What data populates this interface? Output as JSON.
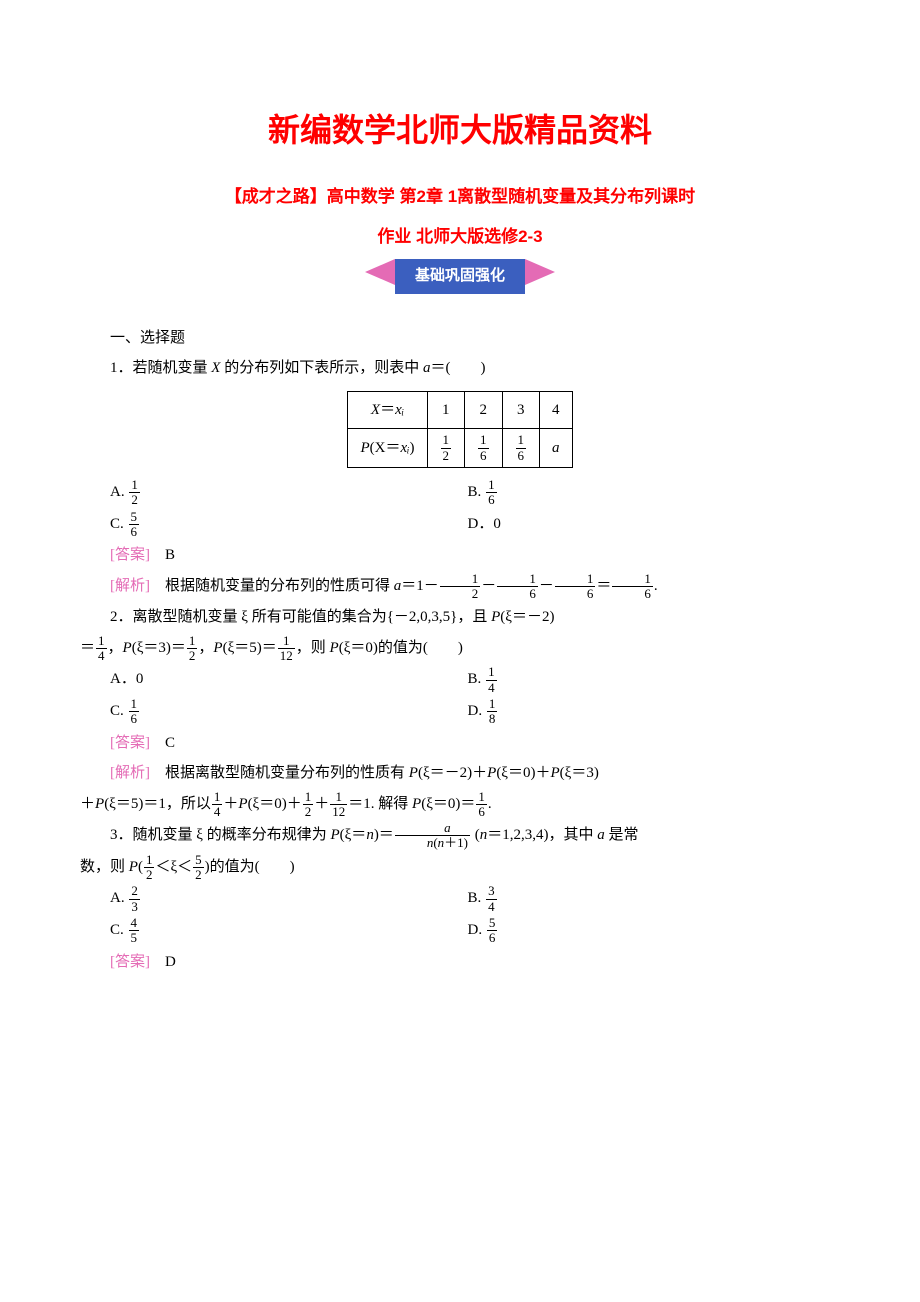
{
  "titles": {
    "main": "新编数学北师大版精品资料",
    "sub1": "【成才之路】高中数学 第2章 1离散型随机变量及其分布列课时",
    "sub2": "作业 北师大版选修2-3",
    "banner": "基础巩固强化"
  },
  "colors": {
    "red_title": "#ff0000",
    "banner_bg": "#3b5fbf",
    "banner_arrow": "#e46bb5",
    "analysis": "#e46bb5",
    "text": "#000000",
    "bg": "#ffffff"
  },
  "typography": {
    "title_main_fontsize": 32,
    "title_sub_fontsize": 17,
    "body_fontsize": 15,
    "frac_fontsize": 13
  },
  "section_heading": "一、选择题",
  "q1": {
    "stem_prefix": "1．若随机变量 ",
    "stem_var": "X",
    "stem_suffix": " 的分布列如下表所示，则表中 ",
    "stem_var2": "a",
    "stem_tail": "＝(　　)",
    "table": {
      "row1_label_pre": "X",
      "row1_label_post": "＝",
      "row1_sub": "xᵢ",
      "row1_vals": [
        "1",
        "2",
        "3",
        "4"
      ],
      "row2_label_pre": "P",
      "row2_label_mid": "(X＝",
      "row2_label_sub": "xᵢ",
      "row2_label_post": ")",
      "row2_fracs": [
        {
          "num": "1",
          "den": "2"
        },
        {
          "num": "1",
          "den": "6"
        },
        {
          "num": "1",
          "den": "6"
        }
      ],
      "row2_last": "a"
    },
    "opts": {
      "A": {
        "num": "1",
        "den": "2"
      },
      "B": {
        "num": "1",
        "den": "6"
      },
      "C": {
        "num": "5",
        "den": "6"
      },
      "D": "0"
    },
    "answer_label": "[答案]",
    "answer": "B",
    "analysis_label": "[解析]",
    "analysis_pre": "根据随机变量的分布列的性质可得 ",
    "analysis_var": "a",
    "analysis_eq": "＝1－",
    "analysis_f1": {
      "num": "1",
      "den": "2"
    },
    "analysis_minus1": "－",
    "analysis_f2": {
      "num": "1",
      "den": "6"
    },
    "analysis_minus2": "－",
    "analysis_f3": {
      "num": "1",
      "den": "6"
    },
    "analysis_eq2": "＝",
    "analysis_f4": {
      "num": "1",
      "den": "6"
    },
    "analysis_end": "."
  },
  "q2": {
    "stem_l1_pre": "2．离散型随机变量 ξ 所有可能值的集合为{－2,0,3,5}，且 ",
    "stem_l1_p": "P",
    "stem_l1_arg": "(ξ＝－2)",
    "stem_l2_pre": "＝",
    "stem_l2_f1": {
      "num": "1",
      "den": "4"
    },
    "stem_l2_t1": "，",
    "stem_l2_p1": "P",
    "stem_l2_a1": "(ξ＝3)＝",
    "stem_l2_f2": {
      "num": "1",
      "den": "2"
    },
    "stem_l2_t2": "，",
    "stem_l2_p2": "P",
    "stem_l2_a2": "(ξ＝5)＝",
    "stem_l2_f3": {
      "num": "1",
      "den": "12"
    },
    "stem_l2_t3": "，则 ",
    "stem_l2_p3": "P",
    "stem_l2_a3": "(ξ＝0)的值为(　　)",
    "opts": {
      "A": "0",
      "B": {
        "num": "1",
        "den": "4"
      },
      "C": {
        "num": "1",
        "den": "6"
      },
      "D": {
        "num": "1",
        "den": "8"
      }
    },
    "answer_label": "[答案]",
    "answer": "C",
    "analysis_label": "[解析]",
    "analysis_l1": "根据离散型随机变量分布列的性质有 ",
    "analysis_l1_p1": "P",
    "analysis_l1_a1": "(ξ＝－2)＋",
    "analysis_l1_p2": "P",
    "analysis_l1_a2": "(ξ＝0)＋",
    "analysis_l1_p3": "P",
    "analysis_l1_a3": "(ξ＝3)",
    "analysis_l2_pre": "＋",
    "analysis_l2_p": "P",
    "analysis_l2_a": "(ξ＝5)＝1，所以",
    "analysis_l2_f1": {
      "num": "1",
      "den": "4"
    },
    "analysis_l2_t1": "＋",
    "analysis_l2_p2": "P",
    "analysis_l2_a2": "(ξ＝0)＋",
    "analysis_l2_f2": {
      "num": "1",
      "den": "2"
    },
    "analysis_l2_t2": "＋",
    "analysis_l2_f3": {
      "num": "1",
      "den": "12"
    },
    "analysis_l2_t3": "＝1. 解得 ",
    "analysis_l2_p3": "P",
    "analysis_l2_a3": "(ξ＝0)＝",
    "analysis_l2_f4": {
      "num": "1",
      "den": "6"
    },
    "analysis_l2_end": "."
  },
  "q3": {
    "stem_l1_pre": "3．随机变量 ξ 的概率分布规律为 ",
    "stem_l1_p": "P",
    "stem_l1_arg": "(ξ＝",
    "stem_l1_n": "n",
    "stem_l1_eq": ")＝",
    "stem_l1_frac_num_a": "a",
    "stem_l1_frac_den_pre": "n",
    "stem_l1_frac_den_mid": "(",
    "stem_l1_frac_den_n1": "n",
    "stem_l1_frac_den_post": "＋1)",
    "stem_l1_tail": " (",
    "stem_l1_n2": "n",
    "stem_l1_tail2": "＝1,2,3,4)，其中 ",
    "stem_l1_a": "a",
    "stem_l1_tail3": " 是常",
    "stem_l2_pre": "数，则 ",
    "stem_l2_p": "P",
    "stem_l2_open": "(",
    "stem_l2_f1": {
      "num": "1",
      "den": "2"
    },
    "stem_l2_lt1": "＜ξ＜",
    "stem_l2_f2": {
      "num": "5",
      "den": "2"
    },
    "stem_l2_close": ")的值为(　　)",
    "opts": {
      "A": {
        "num": "2",
        "den": "3"
      },
      "B": {
        "num": "3",
        "den": "4"
      },
      "C": {
        "num": "4",
        "den": "5"
      },
      "D": {
        "num": "5",
        "den": "6"
      }
    },
    "answer_label": "[答案]",
    "answer": "D"
  }
}
